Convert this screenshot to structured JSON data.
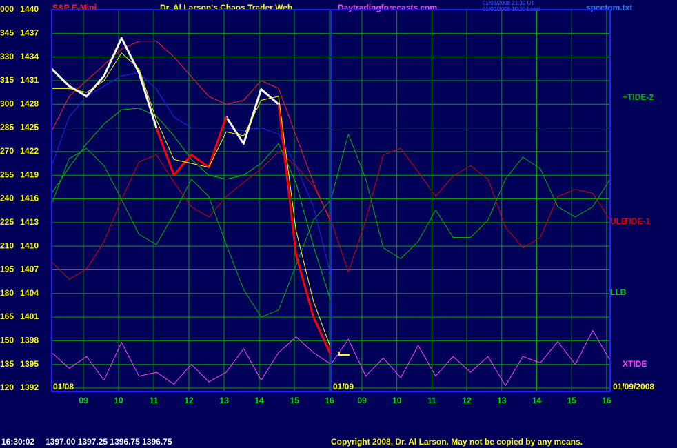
{
  "header": {
    "symbol": "S&P E-Mini",
    "title": "Dr. Al Larson's Chaos Trader Web",
    "site": "Daytradingforecasts.com",
    "stamp_ut": "01/09/2008 21:30 UT",
    "stamp_local": "01/09/2008 15:30 Local",
    "file": "spcctom.txt"
  },
  "chart_data": {
    "type": "line",
    "ylim": [
      1392,
      1440
    ],
    "yticks": [
      1440,
      1437,
      1434,
      1431,
      1428,
      1425,
      1422,
      1419,
      1416,
      1413,
      1410,
      1407,
      1404,
      1401,
      1398,
      1395,
      1392
    ],
    "degree_labels": [
      "000",
      "345",
      "330",
      "315",
      "300",
      "285",
      "270",
      "255",
      "240",
      "225",
      "210",
      "195",
      "180",
      "165",
      "150",
      "135",
      "120"
    ],
    "x_labels": [
      "09",
      "10",
      "11",
      "12",
      "13",
      "14",
      "15",
      "16",
      "09",
      "10",
      "11",
      "12",
      "13",
      "14",
      "15",
      "16"
    ],
    "date_labels": [
      "01/08",
      "01/09",
      "01/09/2008"
    ],
    "grid": true,
    "series": [
      {
        "name": "TIDE-1",
        "color": "#d00000",
        "width": 1,
        "values": [
          1408.0,
          1405.8,
          1407.1,
          1410.6,
          1415.9,
          1420.7,
          1421.6,
          1418.1,
          1415.0,
          1413.7,
          1416.3,
          1418.1,
          1419.8,
          1422.0,
          1420.2,
          1417.6,
          1413.3,
          1406.7,
          1413.3,
          1421.6,
          1422.4,
          1419.4,
          1416.3,
          1418.9,
          1420.2,
          1418.5,
          1412.4,
          1409.8,
          1411.1,
          1416.3,
          1417.2,
          1416.7,
          1413.3
        ]
      },
      {
        "name": "+TIDE-2",
        "color": "#00b000",
        "width": 1,
        "values": [
          1415.4,
          1421.1,
          1422.4,
          1420.2,
          1415.9,
          1411.5,
          1410.2,
          1414.1,
          1418.5,
          1416.3,
          1410.2,
          1404.5,
          1401.0,
          1401.9,
          1407.6,
          1413.3,
          1415.9,
          1424.2,
          1418.5,
          1409.8,
          1408.4,
          1410.6,
          1414.6,
          1411.1,
          1411.1,
          1413.3,
          1418.5,
          1421.3,
          1419.8,
          1415.0,
          1413.7,
          1415.0,
          1418.5
        ]
      },
      {
        "name": "XTIDE",
        "color": "#ff40ff",
        "width": 1,
        "values": [
          1396.5,
          1394.5,
          1396.0,
          1393.0,
          1397.8,
          1393.5,
          1394.0,
          1392.5,
          1395.0,
          1392.8,
          1394.0,
          1397.0,
          1393.0,
          1396.5,
          1398.5,
          1396.5,
          1395.0,
          1398.2,
          1393.5,
          1395.8,
          1393.3,
          1397.4,
          1393.5,
          1396.0,
          1394.0,
          1396.0,
          1392.3,
          1396.0,
          1395.2,
          1397.9,
          1395.0,
          1399.3,
          1395.5
        ]
      },
      {
        "color": "#00c000",
        "width": 1,
        "values": [
          1416.7,
          1420.0,
          1423.0,
          1425.5,
          1427.3,
          1427.5,
          1426.5,
          1424.0,
          1421.0,
          1419.0,
          1418.5,
          1419.0,
          1420.5,
          1423.0,
          1418.0,
          1410.0,
          1403.0
        ]
      },
      {
        "color": "#2020ff",
        "width": 1,
        "values": [
          1420.2,
          1426.4,
          1429.0,
          1430.3,
          1431.6,
          1432.0,
          1429.9,
          1426.4,
          1425.0,
          1425.0,
          1425.0,
          1424.6,
          1425.0,
          1424.2,
          1420.2,
          1415.0,
          1406.3
        ]
      },
      {
        "color": "#ff2020",
        "width": 1,
        "values": [
          1424.6,
          1429.0,
          1431.0,
          1433.0,
          1435.0,
          1436.0,
          1436.0,
          1434.0,
          1431.5,
          1429.0,
          1428.0,
          1428.5,
          1431.0,
          1430.0,
          1424.0,
          1418.0,
          1413.0
        ]
      },
      {
        "color": "#ffffff",
        "width": 3,
        "values": [
          1432.5,
          1430.3,
          1429.0,
          1431.6,
          1436.4,
          1432.0,
          1425.0,
          null,
          null,
          null,
          1426.4,
          1423.0,
          1429.9,
          1428.0,
          null,
          null,
          null
        ]
      },
      {
        "color": "#ff0000",
        "width": 3,
        "values": [
          null,
          null,
          null,
          null,
          null,
          null,
          1425.0,
          1419.0,
          1421.6,
          1420.0,
          1426.4,
          null,
          null,
          1428.0,
          1408.9,
          1401.0,
          1396.2
        ]
      },
      {
        "color": "#ffff00",
        "width": 1,
        "values": [
          1430.0,
          1430.0,
          1429.5,
          1431.0,
          1434.5,
          1432.5,
          1426.0,
          1421.0,
          1420.5,
          1420.0,
          1424.5,
          1424.0,
          1428.5,
          1429.0,
          1412.0,
          1403.0,
          1397.0
        ]
      }
    ],
    "curve_labels": [
      {
        "text": "ULB",
        "color": "#e00000"
      },
      {
        "text": "LLB",
        "color": "#00d000"
      }
    ]
  },
  "footer": {
    "time": "16:30:02",
    "quote": "1397.00 1397.25 1396.75 1396.75",
    "copyright": "Copyright 2008, Dr. Al Larson. May not be copied by any means."
  }
}
